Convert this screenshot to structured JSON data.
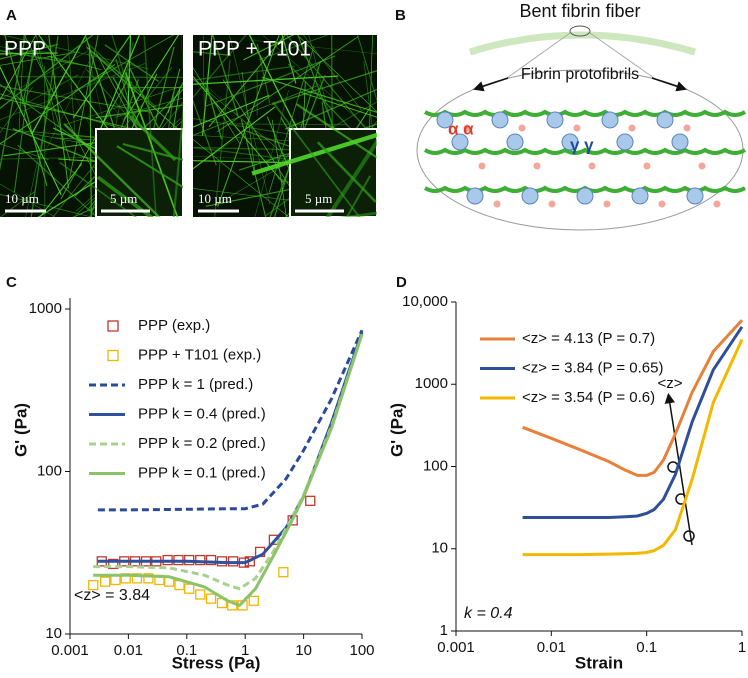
{
  "panels": {
    "a": {
      "label": "A",
      "images": [
        {
          "title": "PPP",
          "scale_bar": "10 µm",
          "inset_scale_bar": "5 µm"
        },
        {
          "title": "PPP + T101",
          "scale_bar": "10 µm",
          "inset_scale_bar": "5 µm"
        }
      ]
    },
    "b": {
      "label": "B",
      "title": "Bent fibrin fiber",
      "subtitle": "Fibrin protofibrils",
      "alpha": "α α",
      "gamma": "γ γ"
    }
  },
  "chart_data": [
    {
      "type": "line",
      "panel": "C",
      "x_label": "Stress (Pa)",
      "y_label": "G' (Pa)",
      "log_x": true,
      "log_y": true,
      "xlim": [
        0.001,
        100
      ],
      "xticks": [
        0.001,
        0.01,
        0.1,
        1,
        10,
        100
      ],
      "ylim": [
        10,
        1000
      ],
      "yticks": [
        10,
        100,
        1000
      ],
      "legend": "upper left",
      "annotations": [
        "<z> = 3.84"
      ],
      "series": [
        {
          "name": "PPP (exp.)",
          "color": "#c0392b",
          "style": "marker",
          "x": [
            0.0035,
            0.0055,
            0.0085,
            0.013,
            0.02,
            0.03,
            0.047,
            0.072,
            0.11,
            0.17,
            0.26,
            0.4,
            0.62,
            0.95,
            1.2,
            1.8,
            3.1,
            6.5,
            13
          ],
          "values": [
            28,
            27,
            28,
            28,
            28,
            28,
            28.5,
            28.5,
            28.5,
            28.5,
            28.5,
            28,
            28,
            27.5,
            28,
            32,
            38,
            50,
            66
          ]
        },
        {
          "name": "PPP + T101 (exp.)",
          "color": "#f2b600",
          "style": "marker",
          "x": [
            0.0025,
            0.004,
            0.006,
            0.009,
            0.014,
            0.022,
            0.034,
            0.05,
            0.075,
            0.11,
            0.17,
            0.26,
            0.4,
            0.6,
            0.9,
            1.4,
            4.5
          ],
          "values": [
            20,
            21,
            21.5,
            22,
            22,
            22,
            21.5,
            21,
            20,
            19,
            17.5,
            16.5,
            15.5,
            15,
            15,
            16,
            24
          ]
        },
        {
          "name": "PPP k = 1 (pred.)",
          "color": "#2a4b9b",
          "style": "dashed",
          "x": [
            0.003,
            0.01,
            0.1,
            0.5,
            1,
            2,
            5,
            10,
            30,
            100
          ],
          "values": [
            58,
            58,
            58.5,
            59,
            59,
            63,
            90,
            135,
            280,
            740
          ]
        },
        {
          "name": "PPP k = 0.4 (pred.)",
          "color": "#2f4f9f",
          "style": "solid",
          "x": [
            0.003,
            0.01,
            0.1,
            0.5,
            1,
            2,
            5,
            10,
            30,
            100
          ],
          "values": [
            28,
            28,
            28,
            27.5,
            27.5,
            31,
            45,
            70,
            200,
            720
          ]
        },
        {
          "name": "PPP k = 0.2 (pred.)",
          "color": "#a9d18e",
          "style": "dashed",
          "x": [
            0.0025,
            0.01,
            0.05,
            0.2,
            0.5,
            0.8,
            1.5,
            3,
            6,
            10,
            30,
            100
          ],
          "values": [
            26,
            26,
            25.5,
            23,
            20,
            19,
            22,
            32,
            50,
            72,
            190,
            700
          ]
        },
        {
          "name": "PPP k = 0.1 (pred.)",
          "color": "#8cc36a",
          "style": "solid",
          "x": [
            0.0025,
            0.01,
            0.05,
            0.2,
            0.5,
            0.8,
            1.5,
            3,
            6,
            10,
            30,
            100
          ],
          "values": [
            23,
            23,
            22.5,
            19.5,
            16,
            15,
            19,
            30,
            48,
            70,
            185,
            700
          ]
        }
      ]
    },
    {
      "type": "line",
      "panel": "D",
      "x_label": "Strain",
      "y_label": "G' (Pa)",
      "log_x": true,
      "log_y": true,
      "xlim": [
        0.001,
        1
      ],
      "xticks": [
        0.001,
        0.01,
        0.1,
        1
      ],
      "ylim": [
        1,
        10000
      ],
      "yticks": [
        1,
        10,
        100,
        1000,
        {
          "value": 10000,
          "label": "10,000"
        }
      ],
      "legend": "upper left",
      "annotations": [
        "<z>",
        "k = 0.4"
      ],
      "series": [
        {
          "name": "<z> = 4.13 (P = 0.7)",
          "color": "#e8803a",
          "style": "solid",
          "x": [
            0.005,
            0.01,
            0.02,
            0.04,
            0.06,
            0.08,
            0.1,
            0.12,
            0.15,
            0.2,
            0.3,
            0.5,
            1
          ],
          "values": [
            300,
            220,
            160,
            115,
            90,
            78,
            78,
            85,
            120,
            250,
            800,
            2500,
            6000
          ]
        },
        {
          "name": "<z> = 3.84 (P = 0.65)",
          "color": "#2f4f99",
          "style": "solid",
          "x": [
            0.005,
            0.01,
            0.02,
            0.04,
            0.06,
            0.08,
            0.1,
            0.12,
            0.15,
            0.2,
            0.3,
            0.5,
            1
          ],
          "values": [
            24,
            24,
            24,
            24,
            24.5,
            25,
            27,
            30,
            40,
            80,
            350,
            1500,
            5000
          ]
        },
        {
          "name": "<z> = 3.54 (P = 0.6)",
          "color": "#f5b800",
          "style": "solid",
          "x": [
            0.005,
            0.01,
            0.02,
            0.04,
            0.06,
            0.08,
            0.1,
            0.12,
            0.15,
            0.2,
            0.3,
            0.5,
            1
          ],
          "values": [
            8.5,
            8.5,
            8.5,
            8.6,
            8.7,
            8.8,
            9,
            9.5,
            11,
            17,
            70,
            600,
            3500
          ]
        }
      ]
    }
  ]
}
